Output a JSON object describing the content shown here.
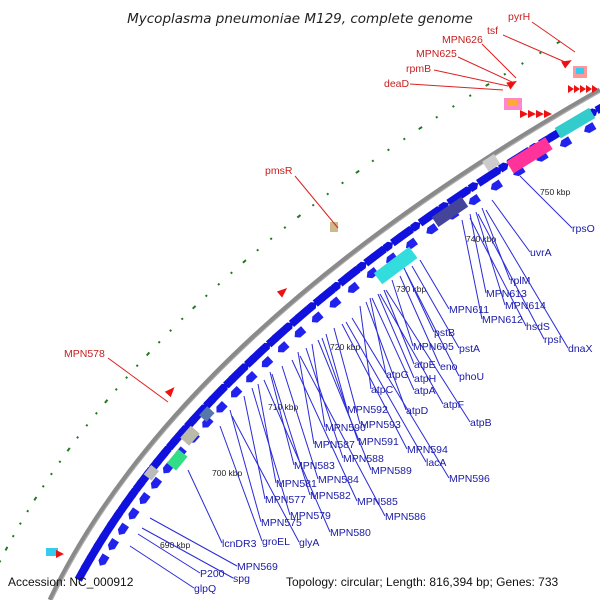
{
  "title": "Mycoplasma pneumoniae M129, complete genome",
  "footer": {
    "accession": "Accession: NC_000912",
    "topology": "Topology: circular; Length: 816,394 bp; Genes: 733"
  },
  "ticks": [
    "690 kbp",
    "700 kbp",
    "710 kbp",
    "720 kbp",
    "730 kbp",
    "740 kbp",
    "750 kbp"
  ],
  "labels_outer": [
    "pyrH",
    "tsf",
    "MPN626",
    "MPN625",
    "rpmB",
    "deaD",
    "pmsR",
    "MPN578"
  ],
  "labels_inner": [
    "rpsO",
    "uvrA",
    "rplM",
    "MPN613",
    "MPN614",
    "MPN612",
    "hsdS",
    "rpsI",
    "dnaX",
    "MPN611",
    "pstB",
    "pstA",
    "MPN605",
    "eno",
    "phoU",
    "atpE",
    "atpH",
    "atpG",
    "atpA",
    "atpC",
    "atpF",
    "atpD",
    "atpB",
    "MPN592",
    "MPN593",
    "MPN590",
    "MPN591",
    "MPN594",
    "MPN587",
    "lacA",
    "MPN588",
    "MPN589",
    "MPN596",
    "MPN583",
    "MPN584",
    "MPN581",
    "MPN582",
    "MPN585",
    "MPN577",
    "MPN586",
    "MPN579",
    "MPN575",
    "MPN580",
    "groEL",
    "glyA",
    "lcnDR3",
    "MPN569",
    "spg",
    "P200",
    "glpQ"
  ],
  "colors": {
    "gene_forward": "#1111dd",
    "rrna": "#33dddd",
    "trna_label": "#cc1111",
    "pseudo": "#bbbbbb",
    "backbone": "#888888"
  }
}
